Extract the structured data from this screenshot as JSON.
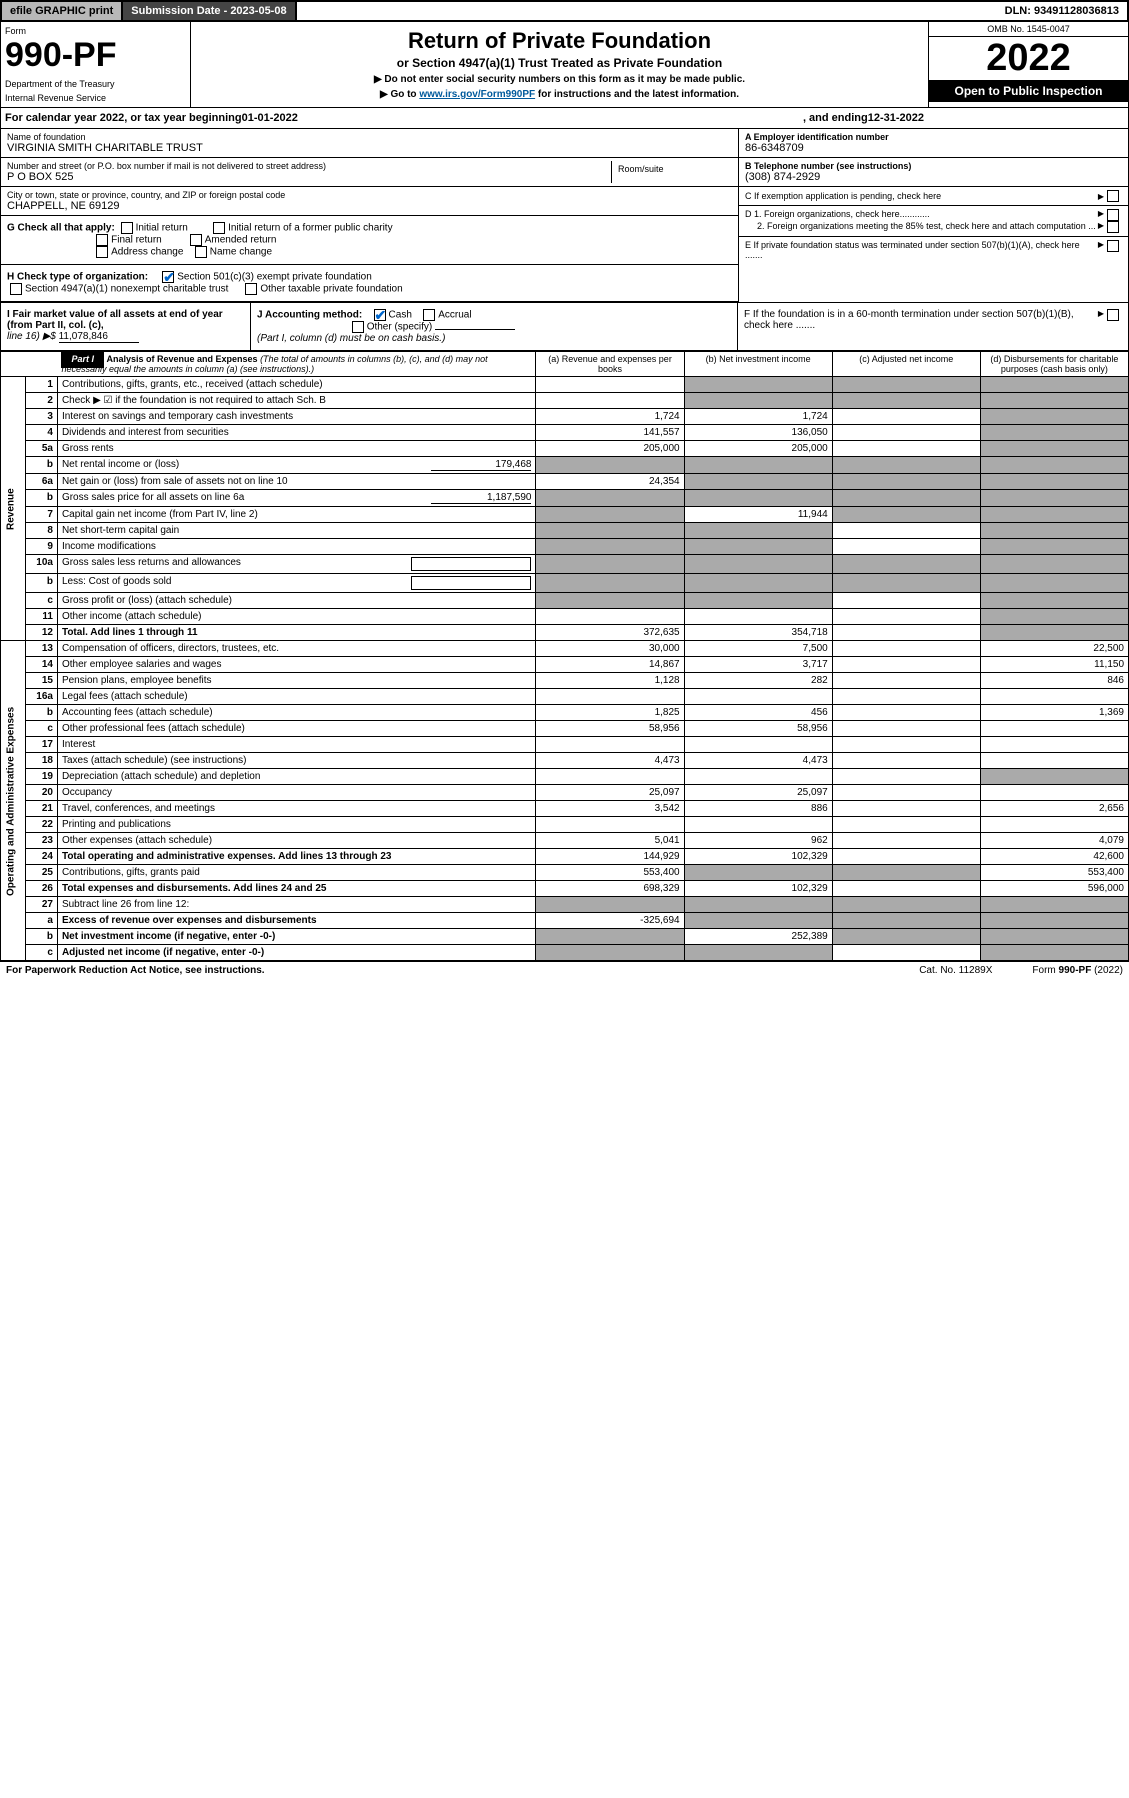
{
  "topbar": {
    "efile": "efile GRAPHIC print",
    "subdate": "Submission Date - 2023-05-08",
    "dln": "DLN: 93491128036813"
  },
  "header": {
    "form_label": "Form",
    "form_no": "990-PF",
    "dept1": "Department of the Treasury",
    "dept2": "Internal Revenue Service",
    "title": "Return of Private Foundation",
    "subtitle": "or Section 4947(a)(1) Trust Treated as Private Foundation",
    "note1": "▶ Do not enter social security numbers on this form as it may be made public.",
    "note2_pre": "▶ Go to ",
    "note2_link": "www.irs.gov/Form990PF",
    "note2_post": " for instructions and the latest information.",
    "omb": "OMB No. 1545-0047",
    "year": "2022",
    "inspect": "Open to Public Inspection"
  },
  "calyear": {
    "pre": "For calendar year 2022, or tax year beginning ",
    "begin": "01-01-2022",
    "mid": ", and ending ",
    "end": "12-31-2022"
  },
  "info": {
    "name_lbl": "Name of foundation",
    "name": "VIRGINIA SMITH CHARITABLE TRUST",
    "addr_lbl": "Number and street (or P.O. box number if mail is not delivered to street address)",
    "addr": "P O BOX 525",
    "room_lbl": "Room/suite",
    "city_lbl": "City or town, state or province, country, and ZIP or foreign postal code",
    "city": "CHAPPELL, NE  69129",
    "a_lbl": "A Employer identification number",
    "a_val": "86-6348709",
    "b_lbl": "B Telephone number (see instructions)",
    "b_val": "(308) 874-2929",
    "c_lbl": "C If exemption application is pending, check here",
    "d1": "D 1. Foreign organizations, check here............",
    "d2": "2. Foreign organizations meeting the 85% test, check here and attach computation ...",
    "e_lbl": "E  If private foundation status was terminated under section 507(b)(1)(A), check here .......",
    "f_lbl": "F  If the foundation is in a 60-month termination under section 507(b)(1)(B), check here .......",
    "g_lbl": "G Check all that apply:",
    "g_opts": [
      "Initial return",
      "Final return",
      "Address change",
      "Initial return of a former public charity",
      "Amended return",
      "Name change"
    ],
    "h_lbl": "H Check type of organization:",
    "h1": "Section 501(c)(3) exempt private foundation",
    "h2": "Section 4947(a)(1) nonexempt charitable trust",
    "h3": "Other taxable private foundation",
    "i_lbl": "I Fair market value of all assets at end of year (from Part II, col. (c),",
    "i_line": "line 16) ▶$",
    "i_val": "11,078,846",
    "j_lbl": "J Accounting method:",
    "j_cash": "Cash",
    "j_accr": "Accrual",
    "j_other": "Other (specify)",
    "j_note": "(Part I, column (d) must be on cash basis.)"
  },
  "part1": {
    "label": "Part I",
    "title": "Analysis of Revenue and Expenses",
    "title_note": " (The total of amounts in columns (b), (c), and (d) may not necessarily equal the amounts in column (a) (see instructions).)",
    "col_a": "(a)  Revenue and expenses per books",
    "col_b": "(b)  Net investment income",
    "col_c": "(c)  Adjusted net income",
    "col_d": "(d)  Disbursements for charitable purposes (cash basis only)",
    "side_rev": "Revenue",
    "side_exp": "Operating and Administrative Expenses",
    "rows": [
      {
        "n": "1",
        "d": "Contributions, gifts, grants, etc., received (attach schedule)",
        "a": "",
        "b": "",
        "c": "",
        "dv": "",
        "gb": true,
        "gc": true,
        "gd": true
      },
      {
        "n": "2",
        "d": "Check ▶ ☑ if the foundation is not required to attach Sch. B",
        "a": "",
        "b": "",
        "c": "",
        "dv": "",
        "gb": true,
        "gc": true,
        "gd": true,
        "bold_not": true
      },
      {
        "n": "3",
        "d": "Interest on savings and temporary cash investments",
        "a": "1,724",
        "b": "1,724",
        "c": "",
        "dv": "",
        "gd": true
      },
      {
        "n": "4",
        "d": "Dividends and interest from securities",
        "a": "141,557",
        "b": "136,050",
        "c": "",
        "dv": "",
        "gd": true
      },
      {
        "n": "5a",
        "d": "Gross rents",
        "a": "205,000",
        "b": "205,000",
        "c": "",
        "dv": "",
        "gd": true
      },
      {
        "n": "b",
        "d": "Net rental income or (loss)",
        "a": "",
        "b": "",
        "c": "",
        "dv": "",
        "inline": "179,468",
        "ga": true,
        "gb": true,
        "gc": true,
        "gd": true
      },
      {
        "n": "6a",
        "d": "Net gain or (loss) from sale of assets not on line 10",
        "a": "24,354",
        "b": "",
        "c": "",
        "dv": "",
        "gb": true,
        "gc": true,
        "gd": true
      },
      {
        "n": "b",
        "d": "Gross sales price for all assets on line 6a",
        "a": "",
        "b": "",
        "c": "",
        "dv": "",
        "inline": "1,187,590",
        "ga": true,
        "gb": true,
        "gc": true,
        "gd": true
      },
      {
        "n": "7",
        "d": "Capital gain net income (from Part IV, line 2)",
        "a": "",
        "b": "11,944",
        "c": "",
        "dv": "",
        "ga": true,
        "gc": true,
        "gd": true
      },
      {
        "n": "8",
        "d": "Net short-term capital gain",
        "a": "",
        "b": "",
        "c": "",
        "dv": "",
        "ga": true,
        "gb": true,
        "gd": true
      },
      {
        "n": "9",
        "d": "Income modifications",
        "a": "",
        "b": "",
        "c": "",
        "dv": "",
        "ga": true,
        "gb": true,
        "gd": true
      },
      {
        "n": "10a",
        "d": "Gross sales less returns and allowances",
        "a": "",
        "b": "",
        "c": "",
        "dv": "",
        "ga": true,
        "gb": true,
        "gc": true,
        "gd": true,
        "box": true
      },
      {
        "n": "b",
        "d": "Less: Cost of goods sold",
        "a": "",
        "b": "",
        "c": "",
        "dv": "",
        "ga": true,
        "gb": true,
        "gc": true,
        "gd": true,
        "box": true
      },
      {
        "n": "c",
        "d": "Gross profit or (loss) (attach schedule)",
        "a": "",
        "b": "",
        "c": "",
        "dv": "",
        "ga": true,
        "gb": true,
        "gd": true
      },
      {
        "n": "11",
        "d": "Other income (attach schedule)",
        "a": "",
        "b": "",
        "c": "",
        "dv": "",
        "gd": true
      },
      {
        "n": "12",
        "d": "Total. Add lines 1 through 11",
        "a": "372,635",
        "b": "354,718",
        "c": "",
        "dv": "",
        "bold": true,
        "gd": true
      },
      {
        "n": "13",
        "d": "Compensation of officers, directors, trustees, etc.",
        "a": "30,000",
        "b": "7,500",
        "c": "",
        "dv": "22,500"
      },
      {
        "n": "14",
        "d": "Other employee salaries and wages",
        "a": "14,867",
        "b": "3,717",
        "c": "",
        "dv": "11,150"
      },
      {
        "n": "15",
        "d": "Pension plans, employee benefits",
        "a": "1,128",
        "b": "282",
        "c": "",
        "dv": "846"
      },
      {
        "n": "16a",
        "d": "Legal fees (attach schedule)",
        "a": "",
        "b": "",
        "c": "",
        "dv": ""
      },
      {
        "n": "b",
        "d": "Accounting fees (attach schedule)",
        "a": "1,825",
        "b": "456",
        "c": "",
        "dv": "1,369"
      },
      {
        "n": "c",
        "d": "Other professional fees (attach schedule)",
        "a": "58,956",
        "b": "58,956",
        "c": "",
        "dv": ""
      },
      {
        "n": "17",
        "d": "Interest",
        "a": "",
        "b": "",
        "c": "",
        "dv": ""
      },
      {
        "n": "18",
        "d": "Taxes (attach schedule) (see instructions)",
        "a": "4,473",
        "b": "4,473",
        "c": "",
        "dv": ""
      },
      {
        "n": "19",
        "d": "Depreciation (attach schedule) and depletion",
        "a": "",
        "b": "",
        "c": "",
        "dv": "",
        "gd": true
      },
      {
        "n": "20",
        "d": "Occupancy",
        "a": "25,097",
        "b": "25,097",
        "c": "",
        "dv": ""
      },
      {
        "n": "21",
        "d": "Travel, conferences, and meetings",
        "a": "3,542",
        "b": "886",
        "c": "",
        "dv": "2,656"
      },
      {
        "n": "22",
        "d": "Printing and publications",
        "a": "",
        "b": "",
        "c": "",
        "dv": ""
      },
      {
        "n": "23",
        "d": "Other expenses (attach schedule)",
        "a": "5,041",
        "b": "962",
        "c": "",
        "dv": "4,079"
      },
      {
        "n": "24",
        "d": "Total operating and administrative expenses. Add lines 13 through 23",
        "a": "144,929",
        "b": "102,329",
        "c": "",
        "dv": "42,600",
        "bold": true
      },
      {
        "n": "25",
        "d": "Contributions, gifts, grants paid",
        "a": "553,400",
        "b": "",
        "c": "",
        "dv": "553,400",
        "gb": true,
        "gc": true
      },
      {
        "n": "26",
        "d": "Total expenses and disbursements. Add lines 24 and 25",
        "a": "698,329",
        "b": "102,329",
        "c": "",
        "dv": "596,000",
        "bold": true
      },
      {
        "n": "27",
        "d": "Subtract line 26 from line 12:",
        "a": "",
        "b": "",
        "c": "",
        "dv": "",
        "ga": true,
        "gb": true,
        "gc": true,
        "gd": true
      },
      {
        "n": "a",
        "d": "Excess of revenue over expenses and disbursements",
        "a": "-325,694",
        "b": "",
        "c": "",
        "dv": "",
        "bold": true,
        "gb": true,
        "gc": true,
        "gd": true
      },
      {
        "n": "b",
        "d": "Net investment income (if negative, enter -0-)",
        "a": "",
        "b": "252,389",
        "c": "",
        "dv": "",
        "bold": true,
        "ga": true,
        "gc": true,
        "gd": true
      },
      {
        "n": "c",
        "d": "Adjusted net income (if negative, enter -0-)",
        "a": "",
        "b": "",
        "c": "",
        "dv": "",
        "bold": true,
        "ga": true,
        "gb": true,
        "gd": true
      }
    ]
  },
  "footer": {
    "left": "For Paperwork Reduction Act Notice, see instructions.",
    "mid": "Cat. No. 11289X",
    "right": "Form 990-PF (2022)"
  },
  "colors": {
    "link": "#005a9c",
    "check": "#0066cc",
    "grey": "#aaaaaa",
    "darkbar": "#444444"
  }
}
